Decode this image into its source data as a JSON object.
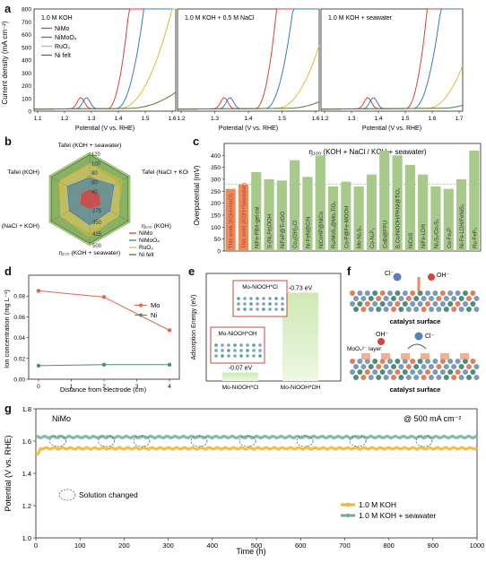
{
  "figure": {
    "panel_letters": [
      "a",
      "b",
      "c",
      "d",
      "e",
      "f",
      "g"
    ],
    "colors": {
      "NiMo": "#d9413a",
      "NiMoO4": "#3a78c9",
      "RuO2": "#e8b830",
      "Ni felt": "#4e7d2c",
      "Mo": "#e0684a",
      "Ni": "#4e8e78",
      "bar": "#a7c98a",
      "bar_highlight": "#e98b5b",
      "g_koh": "#f2b330",
      "g_sea": "#6daf94"
    }
  },
  "panel_a": {
    "ylabel": "Current density (mA cm⁻²)",
    "xlabel": "Potential (V vs. RHE)",
    "subplots": [
      {
        "title": "1.0 M KOH",
        "xticks": [
          "1.1",
          "1.2",
          "1.3",
          "1.4",
          "1.5",
          "1.6"
        ]
      },
      {
        "title": "1.0 M KOH + 0.5 M NaCl",
        "xticks": [
          "1.2",
          "1.3",
          "1.4",
          "1.5",
          "1.6"
        ]
      },
      {
        "title": "1.0 M KOH + seawater",
        "xticks": [
          "1.2",
          "1.3",
          "1.4",
          "1.5",
          "1.6",
          "1.7"
        ]
      }
    ],
    "yticks": [
      "0",
      "100",
      "200",
      "300",
      "400",
      "500",
      "600",
      "700",
      "800"
    ],
    "legend": [
      "NiMo",
      "NiMoO₄",
      "RuO₂",
      "Ni felt"
    ]
  },
  "panel_b": {
    "axes": [
      "Tafel (KOH + seawater)",
      "Tafel (NaCl + KOH)",
      "η₁₀₀ (KOH)",
      "η₁₀₀ (KOH + seawater)",
      "η₁₀₀ (NaCl + KOH)",
      "Tafel (KOH)"
    ],
    "ring_labels": [
      "120",
      "100",
      "80",
      "60",
      "40",
      "275",
      "350",
      "425",
      "500"
    ],
    "legend": [
      "NiMo",
      "NiMoO₄",
      "RuO₂",
      "Ni felt"
    ]
  },
  "panel_c": {
    "title": "η₁₀₀ (KOH + NaCl / KOH + seawater)",
    "ylabel": "Overpotential (mV)",
    "yticks": [
      "0",
      "50",
      "100",
      "150",
      "200",
      "250",
      "300",
      "350",
      "400"
    ],
    "bars": [
      {
        "label": "This work (KOH+NaCl)",
        "value": 260,
        "highlight": true
      },
      {
        "label": "This work (KOH+Seawater)",
        "value": 278,
        "highlight": true
      },
      {
        "label": "NiFe-PBA-gel-cal",
        "value": 330,
        "highlight": false
      },
      {
        "label": "S-(Ni,Fe)OOH",
        "value": 300,
        "highlight": false
      },
      {
        "label": "NiFeP@Ti-rGO",
        "value": 295,
        "highlight": false
      },
      {
        "label": "Co₂(OH)₃Cl",
        "value": 380,
        "highlight": false
      },
      {
        "label": "Ni-FeN@C/N",
        "value": 310,
        "highlight": false
      },
      {
        "label": "NiCoHP@NiCo",
        "value": 400,
        "highlight": false
      },
      {
        "label": "Ru/MoS₂@Mo₂TiO₂",
        "value": 270,
        "highlight": false
      },
      {
        "label": "Co-P@Fe-MOOH",
        "value": 290,
        "highlight": false
      },
      {
        "label": "Mo-Ni₂S₃",
        "value": 270,
        "highlight": false
      },
      {
        "label": "Co-N₃P₂",
        "value": 320,
        "highlight": false
      },
      {
        "label": "CoBi@FPU",
        "value": 420,
        "highlight": false
      },
      {
        "label": "B,Co/NiOOH/PANI@TiO₂",
        "value": 400,
        "highlight": false
      },
      {
        "label": "NiCoS",
        "value": 360,
        "highlight": false
      },
      {
        "label": "NiFe-LDH",
        "value": 320,
        "highlight": false
      },
      {
        "label": "Ni₃S₂/Co₃S₄",
        "value": 270,
        "highlight": false
      },
      {
        "label": "Co-Fe₂P",
        "value": 260,
        "highlight": false
      },
      {
        "label": "Ni-Fe-LDH/FeNiS₂",
        "value": 300,
        "highlight": false
      },
      {
        "label": "Ru-FeP₂",
        "value": 420,
        "highlight": false
      }
    ]
  },
  "panel_d": {
    "ylabel": "Ion concentration (mg L⁻¹)",
    "xlabel": "Distance from electrode (cm)",
    "xticks": [
      "0",
      "1",
      "2",
      "3",
      "4"
    ],
    "yticks": [
      "0.00",
      "0.02",
      "0.04",
      "0.06",
      "0.08"
    ],
    "series": [
      {
        "name": "Mo",
        "x": [
          0,
          2,
          4
        ],
        "y": [
          0.085,
          0.079,
          0.047
        ]
      },
      {
        "name": "Ni",
        "x": [
          0,
          2,
          4
        ],
        "y": [
          0.013,
          0.014,
          0.014
        ]
      }
    ]
  },
  "panel_e": {
    "ylabel": "Adsorption Energy (eV)",
    "bars": [
      {
        "label": "Mo-NiOOH*Cl",
        "value": -0.07,
        "value_label": "-0.07 eV",
        "inset_label": "Mo-NiOOH*Cl"
      },
      {
        "label": "Mo-NiOOH*OH",
        "value": -0.73,
        "value_label": "-0.73 eV",
        "inset_label": "Mo-NiOOH*OH"
      }
    ]
  },
  "panel_f": {
    "labels_top": [
      "Cl⁻",
      "OH⁻",
      "catalyst surface"
    ],
    "labels_bottom": [
      "OH⁻",
      "Cl⁻",
      "MoO₄²⁻ layer",
      "catalyst surface"
    ]
  },
  "panel_g": {
    "sample": "NiMo",
    "condition": "@ 500 mA cm⁻²",
    "ylabel": "Potential (V vs. RHE)",
    "xlabel": "Time (h)",
    "xticks": [
      "0",
      "100",
      "200",
      "300",
      "400",
      "500",
      "600",
      "700",
      "800",
      "900",
      "1000"
    ],
    "yticks": [
      "1.0",
      "1.2",
      "1.4",
      "1.6",
      "1.8"
    ],
    "annotation": "Solution changed",
    "legend": [
      "1.0 M KOH",
      "1.0 M KOH + seawater"
    ],
    "series": [
      {
        "name": "1.0 M KOH",
        "level": 1.555
      },
      {
        "name": "1.0 M KOH + seawater",
        "level": 1.625
      }
    ],
    "solution_changed_hours": [
      50,
      160,
      240,
      370,
      480,
      610,
      730,
      880
    ]
  }
}
